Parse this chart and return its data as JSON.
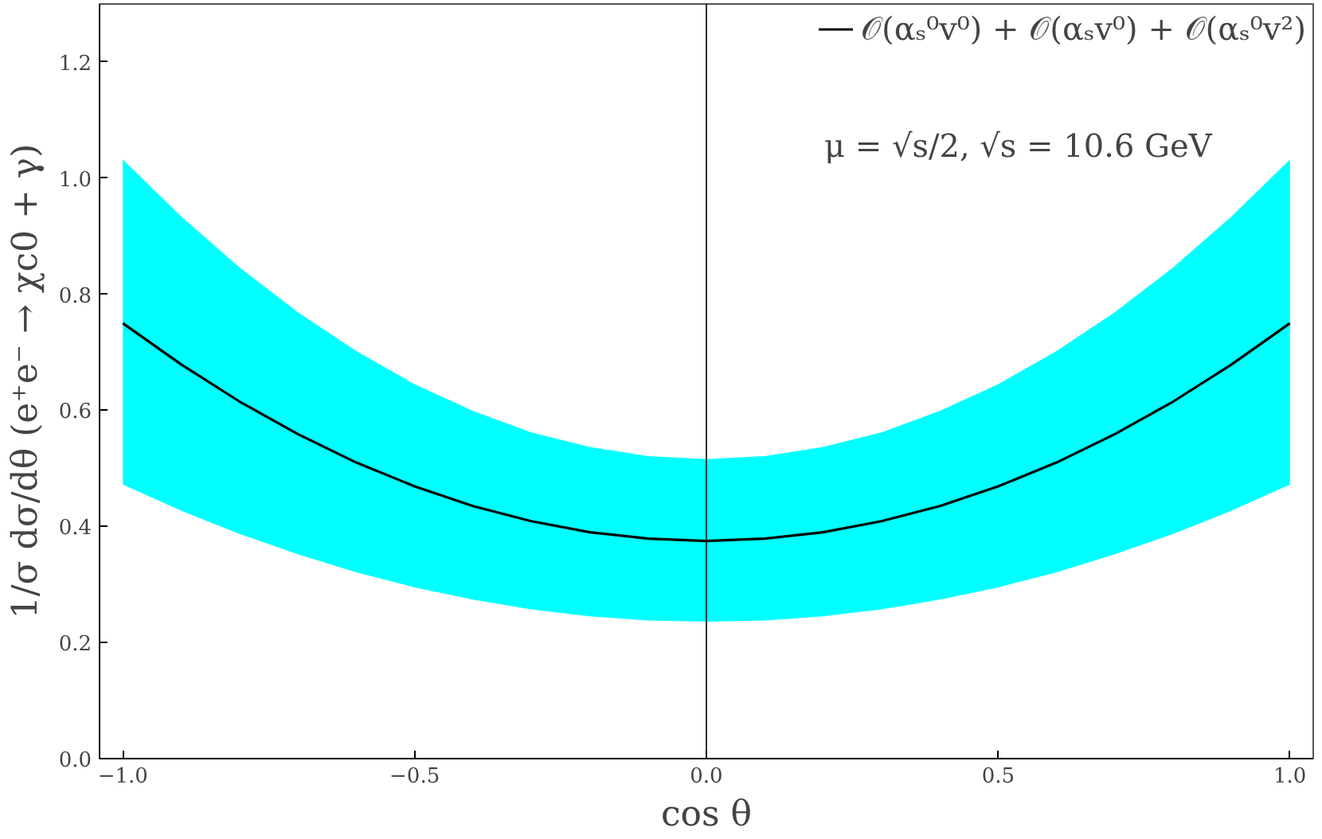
{
  "chart_data": {
    "type": "line",
    "xlabel": "cos θ",
    "ylabel": "1/σ dσ/dθ (e⁺e⁻ → χc0 + γ)",
    "x": [
      -1.0,
      -0.9,
      -0.8,
      -0.7,
      -0.6,
      -0.5,
      -0.4,
      -0.3,
      -0.2,
      -0.1,
      0.0,
      0.1,
      0.2,
      0.3,
      0.4,
      0.5,
      0.6,
      0.7,
      0.8,
      0.9,
      1.0
    ],
    "series": [
      {
        "name": "𝒪(αₛ⁰v⁰) + 𝒪(αₛv⁰) + 𝒪(αₛ⁰v²)",
        "color": "#000000",
        "values": [
          0.75,
          0.679,
          0.615,
          0.559,
          0.51,
          0.469,
          0.435,
          0.409,
          0.39,
          0.379,
          0.375,
          0.379,
          0.39,
          0.409,
          0.435,
          0.469,
          0.51,
          0.559,
          0.615,
          0.679,
          0.75
        ],
        "upper": [
          1.032,
          0.934,
          0.846,
          0.769,
          0.702,
          0.645,
          0.599,
          0.562,
          0.537,
          0.521,
          0.516,
          0.521,
          0.537,
          0.562,
          0.599,
          0.645,
          0.702,
          0.769,
          0.846,
          0.934,
          1.032
        ],
        "lower": [
          0.472,
          0.427,
          0.387,
          0.352,
          0.321,
          0.295,
          0.274,
          0.257,
          0.245,
          0.238,
          0.236,
          0.238,
          0.245,
          0.257,
          0.274,
          0.295,
          0.321,
          0.352,
          0.387,
          0.427,
          0.472
        ]
      }
    ],
    "annotations": [
      "μ = √s/2, √s = 10.6 GeV"
    ],
    "ref_lines": [
      {
        "axis": "x",
        "value": 0,
        "color": "#000000"
      }
    ],
    "xlim": [
      -1.04,
      1.04
    ],
    "ylim": [
      0,
      1.3
    ],
    "xticks": [
      {
        "value": -1.0,
        "label": "−1.0"
      },
      {
        "value": -0.5,
        "label": "−0.5"
      },
      {
        "value": 0.0,
        "label": "0.0"
      },
      {
        "value": 0.5,
        "label": "0.5"
      },
      {
        "value": 1.0,
        "label": "1.0"
      }
    ],
    "yticks": [
      {
        "value": 0,
        "label": "0.0"
      },
      {
        "value": 0.2,
        "label": "0.2"
      },
      {
        "value": 0.4,
        "label": "0.4"
      },
      {
        "value": 0.6,
        "label": "0.6"
      },
      {
        "value": 0.8,
        "label": "0.8"
      },
      {
        "value": 1.0,
        "label": "1.0"
      },
      {
        "value": 1.2,
        "label": "1.2"
      }
    ],
    "grid": false,
    "legend": "top right",
    "line_style": "solid"
  }
}
